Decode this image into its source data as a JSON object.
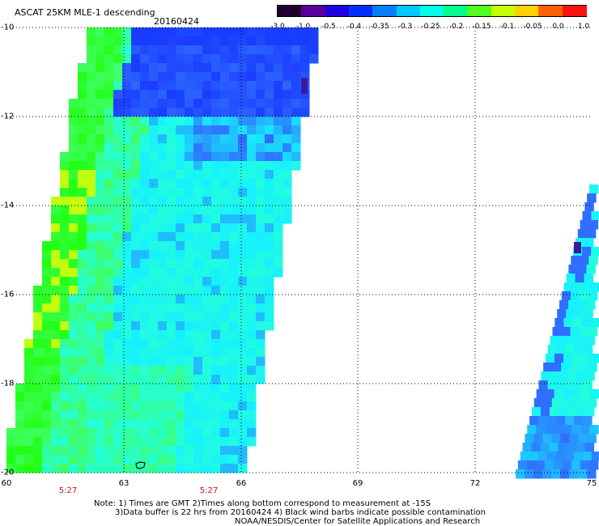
{
  "header": {
    "title": "ASCAT 25KM MLE-1 descending",
    "date": "20160424"
  },
  "colorbar": {
    "labels": [
      "-3.0",
      "-1.0",
      "-0.5",
      "-0.4",
      "-0.35",
      "-0.3",
      "-0.25",
      "-0.2",
      "-0.15",
      "-0.1",
      "-0.05",
      "0.0",
      "1.0"
    ],
    "colors": [
      "#20002e",
      "#5a009a",
      "#2000e0",
      "#0030ff",
      "#0080ff",
      "#00c8ff",
      "#00ffe8",
      "#00ff90",
      "#50ff20",
      "#c8ff00",
      "#ffd000",
      "#ff6000",
      "#ff1010"
    ]
  },
  "map": {
    "lat_labels": [
      "-10",
      "-12",
      "-14",
      "-16",
      "-18",
      "-20"
    ],
    "lon_labels": [
      "60",
      "63",
      "66",
      "69",
      "72",
      "75"
    ],
    "time_labels": [
      "5:27",
      "5:27"
    ],
    "swath_colors": {
      "deep_blue": "#1a3cff",
      "blue": "#2f6eff",
      "cyan": "#16f0ff",
      "aqua": "#24ffd8",
      "green": "#40ff60",
      "bright_green": "#20ff10",
      "yellow_green": "#c0ff10"
    }
  },
  "notes": {
    "line1": "Note:  1) Times are GMT  2)Times along bottom correspond to measurement at -15S",
    "line2": "3)Data buffer is 22 hrs from 20160424  4) Black wind barbs indicate possible contamination",
    "line3": "NOAA/NESDIS/Center for Satellite Applications and Research"
  }
}
